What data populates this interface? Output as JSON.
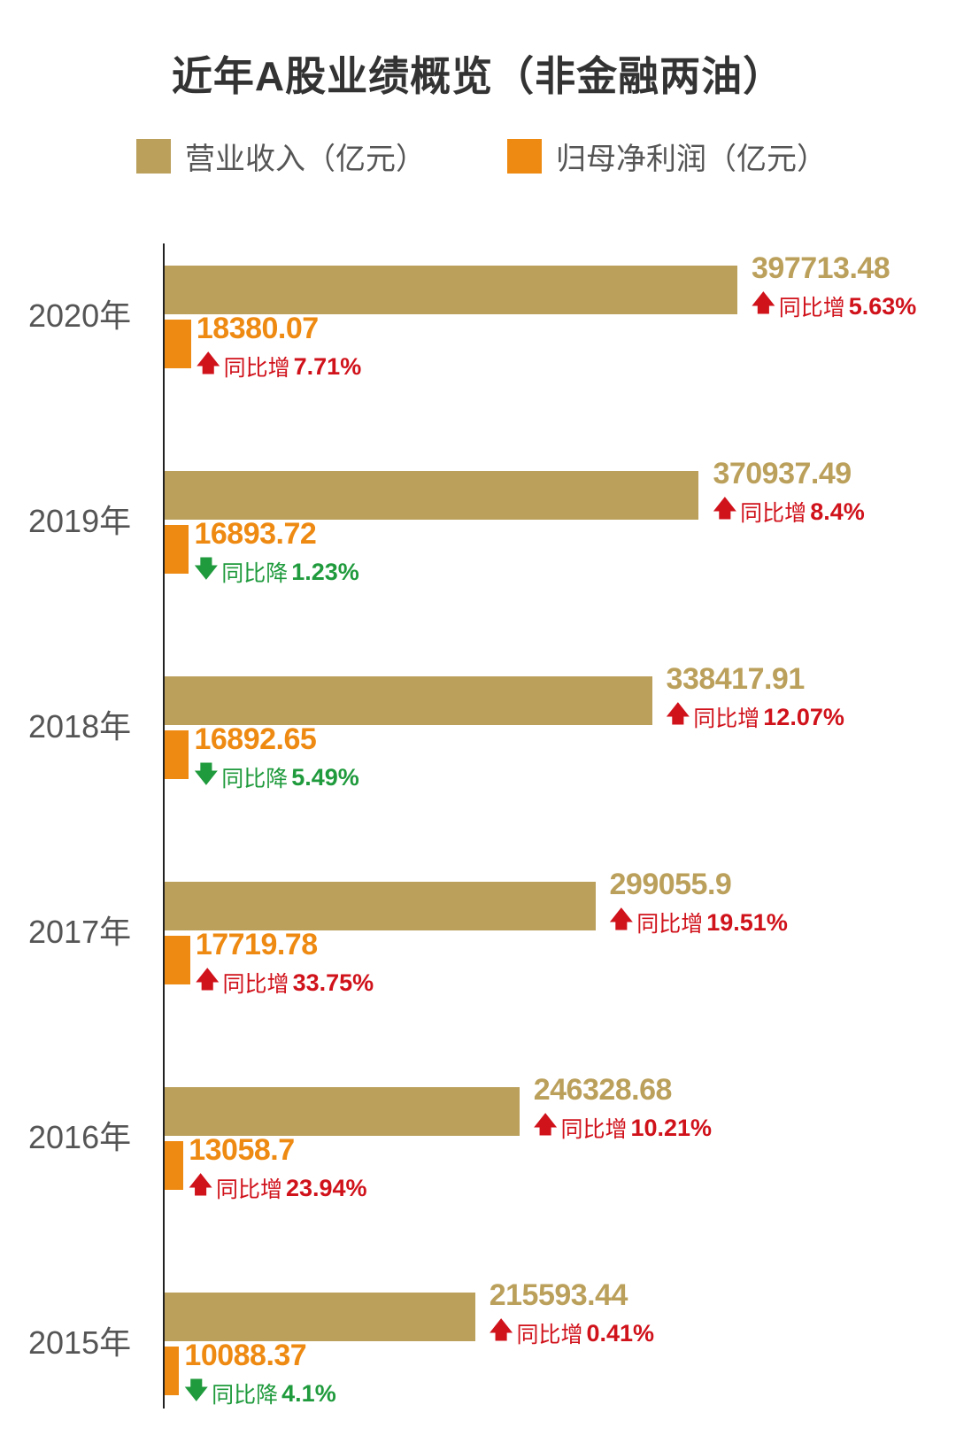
{
  "colors": {
    "revenue": "#bba05c",
    "profit": "#ee8a12",
    "up": "#d0121b",
    "down": "#1f9a3c",
    "year": "#555555"
  },
  "chart_data": {
    "type": "bar",
    "orientation": "horizontal",
    "title": "近年A股业绩概览（非金融两油）",
    "legend": [
      "营业收入（亿元）",
      "归母净利润（亿元）"
    ],
    "legend_position": "top",
    "categories": [
      "2020年",
      "2019年",
      "2018年",
      "2017年",
      "2016年",
      "2015年"
    ],
    "series": [
      {
        "name": "营业收入（亿元）",
        "values": [
          397713.48,
          370937.49,
          338417.91,
          299055.9,
          246328.68,
          215593.44
        ],
        "labels": [
          "397713.48",
          "370937.49",
          "338417.91",
          "299055.9",
          "246328.68",
          "215593.44"
        ],
        "change": [
          {
            "dir": "up",
            "text": "同比增",
            "pct": "5.63%"
          },
          {
            "dir": "up",
            "text": "同比增",
            "pct": "8.4%"
          },
          {
            "dir": "up",
            "text": "同比增",
            "pct": "12.07%"
          },
          {
            "dir": "up",
            "text": "同比增",
            "pct": "19.51%"
          },
          {
            "dir": "up",
            "text": "同比增",
            "pct": "10.21%"
          },
          {
            "dir": "up",
            "text": "同比增",
            "pct": "0.41%"
          }
        ]
      },
      {
        "name": "归母净利润（亿元）",
        "values": [
          18380.07,
          16893.72,
          16892.65,
          17719.78,
          13058.7,
          10088.37
        ],
        "labels": [
          "18380.07",
          "16893.72",
          "16892.65",
          "17719.78",
          "13058.7",
          "10088.37"
        ],
        "change": [
          {
            "dir": "up",
            "text": "同比增",
            "pct": "7.71%"
          },
          {
            "dir": "down",
            "text": "同比降",
            "pct": "1.23%"
          },
          {
            "dir": "down",
            "text": "同比降",
            "pct": "5.49%"
          },
          {
            "dir": "up",
            "text": "同比增",
            "pct": "33.75%"
          },
          {
            "dir": "up",
            "text": "同比增",
            "pct": "23.94%"
          },
          {
            "dir": "down",
            "text": "同比降",
            "pct": "4.1%"
          }
        ]
      }
    ],
    "xlim": [
      0,
      397713.48
    ],
    "grid": false
  },
  "arrows": {
    "up": "🡅",
    "down": "🡇"
  }
}
